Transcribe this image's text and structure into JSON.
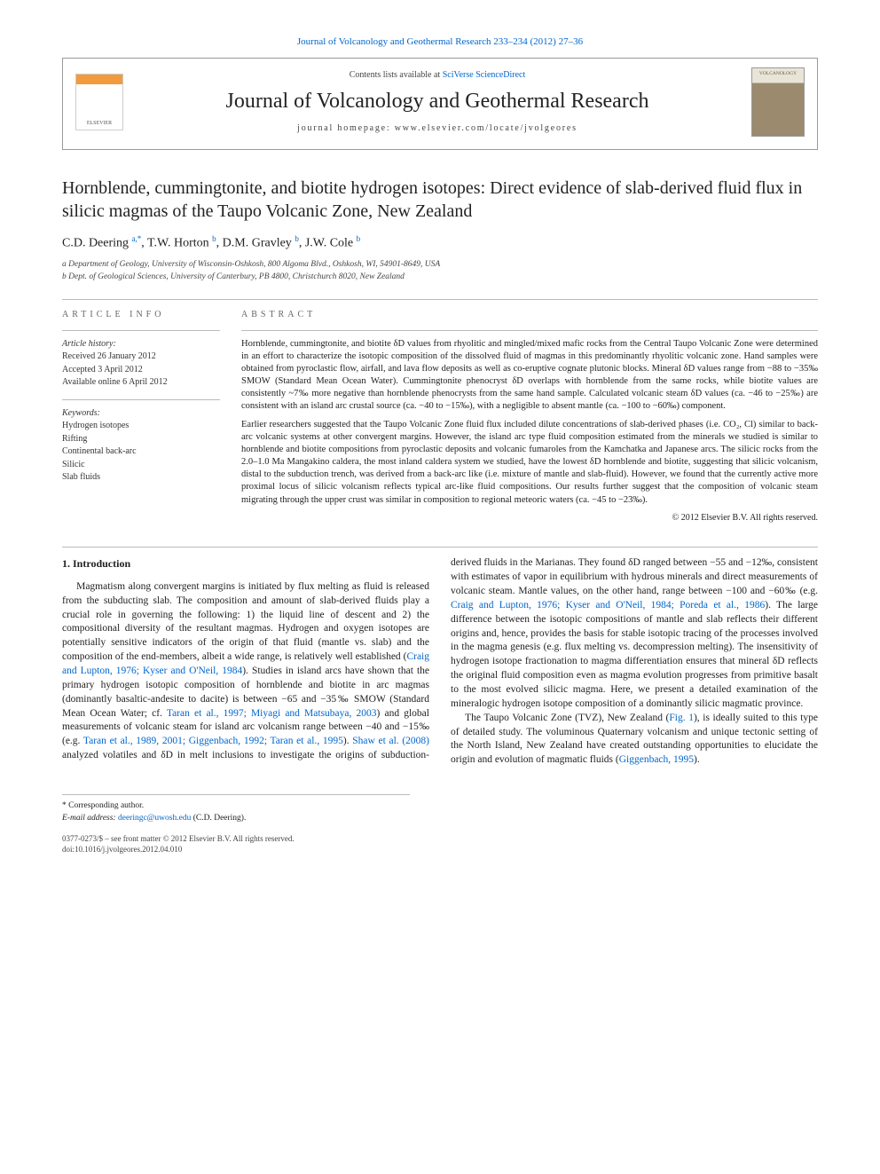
{
  "top_citation": "Journal of Volcanology and Geothermal Research 233–234 (2012) 27–36",
  "header": {
    "contents_prefix": "Contents lists available at ",
    "contents_link": "SciVerse ScienceDirect",
    "journal_name": "Journal of Volcanology and Geothermal Research",
    "homepage_label": "journal homepage: www.elsevier.com/locate/jvolgeores",
    "elsevier_label": "ELSEVIER",
    "cover_label": "VOLCANOLOGY"
  },
  "title": "Hornblende, cummingtonite, and biotite hydrogen isotopes: Direct evidence of slab-derived fluid flux in silicic magmas of the Taupo Volcanic Zone, New Zealand",
  "authors": {
    "a1_name": "C.D. Deering ",
    "a1_sup": "a,",
    "a1_star": "*",
    "a2_name": ", T.W. Horton ",
    "a2_sup": "b",
    "a3_name": ", D.M. Gravley ",
    "a3_sup": "b",
    "a4_name": ", J.W. Cole ",
    "a4_sup": "b"
  },
  "affiliations": {
    "a": "a Department of Geology, University of Wisconsin-Oshkosh, 800 Algoma Blvd., Oshkosh, WI, 54901-8649, USA",
    "b": "b Dept. of Geological Sciences, University of Canterbury, PB 4800, Christchurch 8020, New Zealand"
  },
  "info": {
    "heading": "article info",
    "history_label": "Article history:",
    "received": "Received 26 January 2012",
    "accepted": "Accepted 3 April 2012",
    "online": "Available online 6 April 2012",
    "keywords_label": "Keywords:",
    "kw1": "Hydrogen isotopes",
    "kw2": "Rifting",
    "kw3": "Continental back-arc",
    "kw4": "Silicic",
    "kw5": "Slab fluids"
  },
  "abstract": {
    "heading": "abstract",
    "p1": "Hornblende, cummingtonite, and biotite δD values from rhyolitic and mingled/mixed mafic rocks from the Central Taupo Volcanic Zone were determined in an effort to characterize the isotopic composition of the dissolved fluid of magmas in this predominantly rhyolitic volcanic zone. Hand samples were obtained from pyroclastic flow, airfall, and lava flow deposits as well as co-eruptive cognate plutonic blocks. Mineral δD values range from −88 to −35‰ SMOW (Standard Mean Ocean Water). Cummingtonite phenocryst δD overlaps with hornblende from the same rocks, while biotite values are consistently ~7‰ more negative than hornblende phenocrysts from the same hand sample. Calculated volcanic steam δD values (ca. −46 to −25‰) are consistent with an island arc crustal source (ca. −40 to −15‰), with a negligible to absent mantle (ca. −100 to −60‰) component.",
    "p2": "Earlier researchers suggested that the Taupo Volcanic Zone fluid flux included dilute concentrations of slab-derived phases (i.e. CO₂, Cl) similar to back-arc volcanic systems at other convergent margins. However, the island arc type fluid composition estimated from the minerals we studied is similar to hornblende and biotite compositions from pyroclastic deposits and volcanic fumaroles from the Kamchatka and Japanese arcs. The silicic rocks from the 2.0–1.0 Ma Mangakino caldera, the most inland caldera system we studied, have the lowest δD hornblende and biotite, suggesting that silicic volcanism, distal to the subduction trench, was derived from a back-arc like (i.e. mixture of mantle and slab-fluid). However, we found that the currently active more proximal locus of silicic volcanism reflects typical arc-like fluid compositions. Our results further suggest that the composition of volcanic steam migrating through the upper crust was similar in composition to regional meteoric waters (ca. −45 to −23‰).",
    "copyright": "© 2012 Elsevier B.V. All rights reserved."
  },
  "body": {
    "intro_heading": "1. Introduction",
    "p1a": "Magmatism along convergent margins is initiated by flux melting as fluid is released from the subducting slab. The composition and amount of slab-derived fluids play a crucial role in governing the following: 1) the liquid line of descent and 2) the compositional diversity of the resultant magmas. Hydrogen and oxygen isotopes are potentially sensitive indicators of the origin of that fluid (mantle vs. slab) and the composition of the end-members, albeit a wide range, is relatively well established (",
    "l1": "Craig and Lupton, 1976; Kyser and O'Neil, 1984",
    "p1b": "). Studies in island arcs have shown that the primary hydrogen isotopic composition of hornblende and biotite in arc magmas (dominantly basaltic-andesite to dacite) is between −65 and −35‰ SMOW (Standard Mean Ocean Water; cf. ",
    "l2": "Taran et al., 1997; Miyagi and Matsubaya, 2003",
    "p1c": ") and global measurements of volcanic steam for island arc volcanism range between −40 and −15‰ (e.g. ",
    "l3": "Taran et al., 1989, 2001; Giggenbach, 1992; Taran et al., 1995",
    "p1d": "). ",
    "l4": "Shaw et al. (2008)",
    "p1e": " analyzed volatiles and δD in melt inclusions to investigate the origins of subduction-derived fluids in the Marianas. They found δD ranged between −55 and −12‰, consistent with estimates of vapor in equilibrium with hydrous minerals and direct measurements of volcanic steam. Mantle values, on the other hand, range between −100 and −60‰ (e.g. ",
    "l5": "Craig and Lupton, 1976; Kyser and O'Neil, 1984; Poreda et al., 1986",
    "p1f": "). The large difference between the isotopic compositions of mantle and slab reflects their different origins and, hence, provides the basis for stable isotopic tracing of the processes involved in the magma genesis (e.g. flux melting vs. decompression melting). The insensitivity of hydrogen isotope fractionation to magma differentiation ensures that mineral δD reflects the original fluid composition even as magma evolution progresses from primitive basalt to the most evolved silicic magma. Here, we present a detailed examination of the mineralogic hydrogen isotope composition of a dominantly silicic magmatic province.",
    "p2a": "The Taupo Volcanic Zone (TVZ), New Zealand (",
    "l6": "Fig. 1",
    "p2b": "), is ideally suited to this type of detailed study. The voluminous Quaternary volcanism and unique tectonic setting of the North Island, New Zealand have created outstanding opportunities to elucidate the origin and evolution of magmatic fluids (",
    "l7": "Giggenbach, 1995",
    "p2c": ")."
  },
  "footer": {
    "corr": "* Corresponding author.",
    "email_label": "E-mail address: ",
    "email": "deeringc@uwosh.edu",
    "email_suffix": " (C.D. Deering).",
    "issn_line": "0377-0273/$ – see front matter © 2012 Elsevier B.V. All rights reserved.",
    "doi": "doi:10.1016/j.jvolgeores.2012.04.010"
  }
}
